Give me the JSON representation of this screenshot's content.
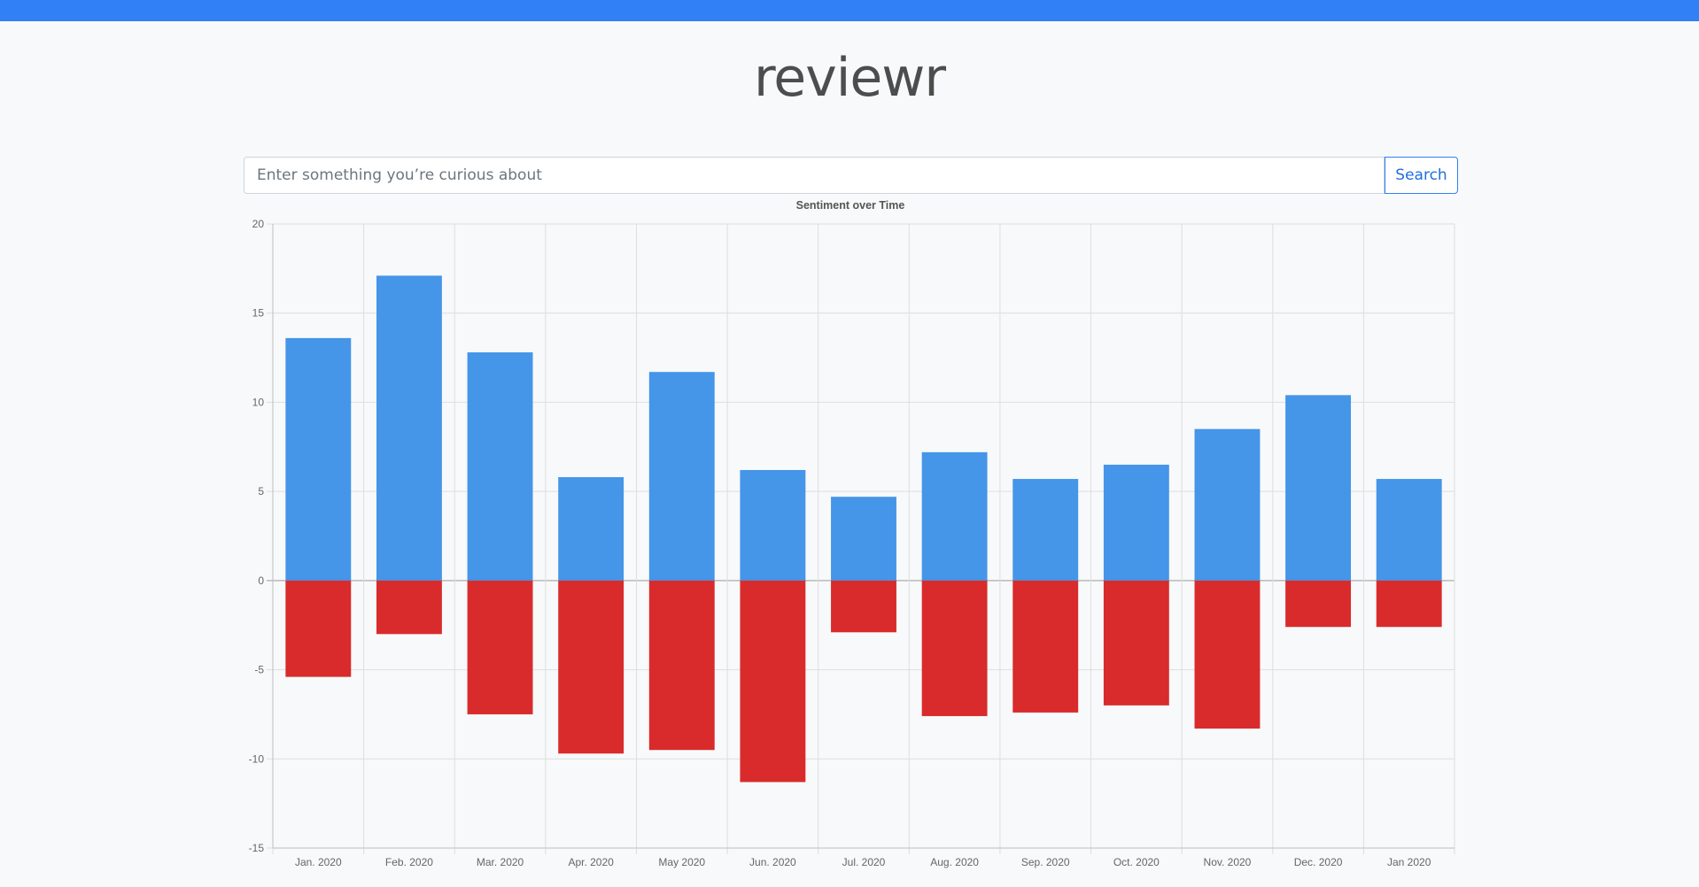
{
  "app": {
    "title": "reviewr"
  },
  "search": {
    "placeholder": "Enter something you’re curious about",
    "value": "",
    "button_label": "Search"
  },
  "colors": {
    "accent": "#3180f5",
    "positive": "#4595e8",
    "negative": "#d92b2b"
  },
  "chart_data": {
    "type": "bar",
    "title": "Sentiment over Time",
    "xlabel": "",
    "ylabel": "",
    "stacked": true,
    "grid": true,
    "legend": "none",
    "ylim": [
      -15,
      20
    ],
    "yticks": [
      20,
      15,
      10,
      5,
      0,
      -5,
      -10,
      -15
    ],
    "categories": [
      "Jan. 2020",
      "Feb. 2020",
      "Mar. 2020",
      "Apr. 2020",
      "May 2020",
      "Jun. 2020",
      "Jul. 2020",
      "Aug. 2020",
      "Sep. 2020",
      "Oct. 2020",
      "Nov. 2020",
      "Dec. 2020",
      "Jan 2020"
    ],
    "series": [
      {
        "color": "#4595e8",
        "values": [
          13.6,
          17.1,
          12.8,
          5.8,
          11.7,
          6.2,
          4.7,
          7.2,
          5.7,
          6.5,
          8.5,
          10.4,
          5.7
        ]
      },
      {
        "color": "#d92b2b",
        "values": [
          -5.4,
          -3.0,
          -7.5,
          -9.7,
          -9.5,
          -11.3,
          -2.9,
          -7.6,
          -7.4,
          -7.0,
          -8.3,
          -2.6,
          -2.6
        ]
      }
    ]
  }
}
